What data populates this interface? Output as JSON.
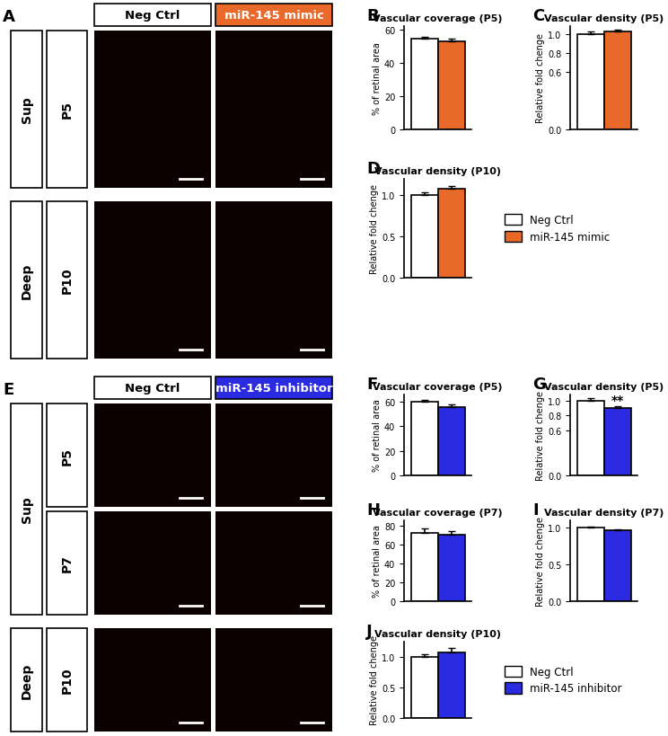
{
  "image_panels": [
    {
      "panel": "A",
      "columns": [
        "Neg Ctrl",
        "miR-145 mimic"
      ],
      "colors": [
        "#ffffff",
        "#e8692a"
      ],
      "groups": [
        {
          "label": "Sup",
          "rows": [
            "P5"
          ]
        },
        {
          "label": "Deep",
          "rows": [
            "P10"
          ]
        }
      ]
    },
    {
      "panel": "E",
      "columns": [
        "Neg Ctrl",
        "miR-145 inhibitor"
      ],
      "colors": [
        "#ffffff",
        "#2a2ae0"
      ],
      "groups": [
        {
          "label": "Sup",
          "rows": [
            "P5",
            "P7"
          ]
        },
        {
          "label": "Deep",
          "rows": [
            "P10"
          ]
        }
      ]
    }
  ],
  "chart_data": [
    {
      "panel": "B",
      "type": "bar",
      "title": "Vascular coverage (P5)",
      "y_label": "% of retinal area",
      "categories": [
        null
      ],
      "tick_labels": "y",
      "ylim": [
        0,
        62
      ],
      "yticks": [
        0,
        20,
        40,
        60
      ],
      "series": [
        {
          "name": "Neg Ctrl",
          "color": "#ffffff",
          "values": [
            54.5
          ],
          "errors": [
            1.2
          ]
        },
        {
          "name": "miR-145 mimic",
          "color": "#e8692a",
          "values": [
            53
          ],
          "errors": [
            1.3
          ]
        }
      ]
    },
    {
      "panel": "C",
      "type": "bar",
      "title": "Vascular density (P5)",
      "y_label": "Relative fold chenge",
      "categories": [
        null
      ],
      "tick_labels": "y",
      "ylim": [
        0,
        1.08
      ],
      "yticks": [
        {
          "value": 0,
          "label": "0.0"
        },
        0.6,
        0.8,
        {
          "value": 1,
          "label": "1.0"
        }
      ],
      "series": [
        {
          "name": "Neg Ctrl",
          "color": "#ffffff",
          "values": [
            1.0
          ],
          "errors": [
            0.02
          ]
        },
        {
          "name": "miR-145 mimic",
          "color": "#e8692a",
          "values": [
            1.02
          ],
          "errors": [
            0.02
          ]
        }
      ]
    },
    {
      "panel": "D",
      "type": "bar",
      "title": "Vascular density (P10)",
      "y_label": "Relative fold chenge",
      "categories": [
        null
      ],
      "tick_labels": "y",
      "ylim": [
        0,
        1.2
      ],
      "yticks": [
        {
          "value": 0,
          "label": "0.0"
        },
        0.5,
        {
          "value": 1,
          "label": "1.0"
        }
      ],
      "legend": "center left",
      "series": [
        {
          "name": "Neg Ctrl",
          "color": "#ffffff",
          "values": [
            1.0
          ],
          "errors": [
            0.04
          ]
        },
        {
          "name": "miR-145 mimic",
          "color": "#e8692a",
          "values": [
            1.08
          ],
          "errors": [
            0.03
          ]
        }
      ]
    },
    {
      "panel": "F",
      "type": "bar",
      "title": "Vascular coverage (P5)",
      "y_label": "% of retinal area",
      "categories": [
        null
      ],
      "tick_labels": "y",
      "ylim": [
        0,
        66
      ],
      "yticks": [
        0,
        20,
        40,
        60
      ],
      "series": [
        {
          "name": "Neg Ctrl",
          "color": "#ffffff",
          "values": [
            60
          ],
          "errors": [
            1.5
          ]
        },
        {
          "name": "miR-145 inhibitor",
          "color": "#2a2ae0",
          "values": [
            55.5
          ],
          "errors": [
            2.5
          ]
        }
      ]
    },
    {
      "panel": "G",
      "type": "bar",
      "title": "Vascular density (P5)",
      "y_label": "Relative fold chenge",
      "categories": [
        null
      ],
      "tick_labels": "y",
      "ylim": [
        0,
        1.08
      ],
      "yticks": [
        {
          "value": 0,
          "label": "0.0"
        },
        0.6,
        0.8,
        {
          "value": 1,
          "label": "1.0"
        }
      ],
      "annotations": [
        {
          "text": "**",
          "series": "miR-145 inhibitor"
        }
      ],
      "series": [
        {
          "name": "Neg Ctrl",
          "color": "#ffffff",
          "values": [
            1.0
          ],
          "errors": [
            0.03
          ]
        },
        {
          "name": "miR-145 inhibitor",
          "color": "#2a2ae0",
          "values": [
            0.9
          ],
          "errors": [
            0.02
          ]
        }
      ]
    },
    {
      "panel": "H",
      "type": "bar",
      "title": "Vascular coverage (P7)",
      "y_label": "% of retinal area",
      "categories": [
        null
      ],
      "tick_labels": "y",
      "ylim": [
        0,
        86
      ],
      "yticks": [
        0,
        20,
        40,
        60,
        80
      ],
      "series": [
        {
          "name": "Neg Ctrl",
          "color": "#ffffff",
          "values": [
            73
          ],
          "errors": [
            4
          ]
        },
        {
          "name": "miR-145 inhibitor",
          "color": "#2a2ae0",
          "values": [
            71
          ],
          "errors": [
            3.5
          ]
        }
      ]
    },
    {
      "panel": "I",
      "type": "bar",
      "title": "Vascular density (P7)",
      "y_label": "Relative fold chenge",
      "categories": [
        null
      ],
      "tick_labels": "y",
      "ylim": [
        0,
        1.1
      ],
      "yticks": [
        {
          "value": 0,
          "label": "0.0"
        },
        0.5,
        {
          "value": 1,
          "label": "1.0"
        }
      ],
      "series": [
        {
          "name": "Neg Ctrl",
          "color": "#ffffff",
          "values": [
            1.0
          ],
          "errors": [
            0.02
          ]
        },
        {
          "name": "miR-145 inhibitor",
          "color": "#2a2ae0",
          "values": [
            0.96
          ],
          "errors": [
            0.02
          ]
        }
      ]
    },
    {
      "panel": "J",
      "type": "bar",
      "title": "Vascular density (P10)",
      "y_label": "Relative fold chenge",
      "categories": [
        null
      ],
      "tick_labels": "y",
      "ylim": [
        0,
        1.25
      ],
      "yticks": [
        {
          "value": 0,
          "label": "0.0"
        },
        0.5,
        {
          "value": 1,
          "label": "1.0"
        }
      ],
      "legend": "center left",
      "series": [
        {
          "name": "Neg Ctrl",
          "color": "#ffffff",
          "values": [
            1.0
          ],
          "errors": [
            0.04
          ]
        },
        {
          "name": "miR-145 inhibitor",
          "color": "#2a2ae0",
          "values": [
            1.08
          ],
          "errors": [
            0.06
          ]
        }
      ]
    }
  ]
}
